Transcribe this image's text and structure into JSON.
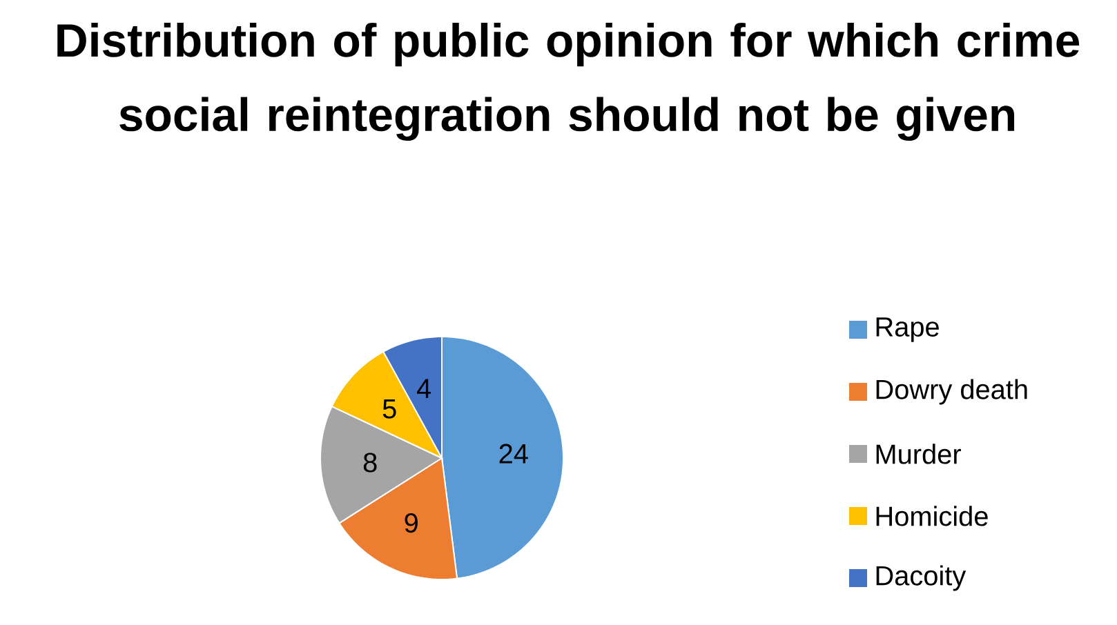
{
  "chart_data": {
    "type": "pie",
    "title": "Distribution of public opinion for which crime social reintegration should not be given",
    "categories": [
      "Rape",
      "Dowry death",
      "Murder",
      "Homicide",
      "Dacoity"
    ],
    "values": [
      24,
      9,
      8,
      5,
      4
    ],
    "colors": [
      "#5b9bd5",
      "#ed7d31",
      "#a5a5a5",
      "#ffc000",
      "#4472c4"
    ],
    "data_labels": true,
    "legend": "right"
  }
}
